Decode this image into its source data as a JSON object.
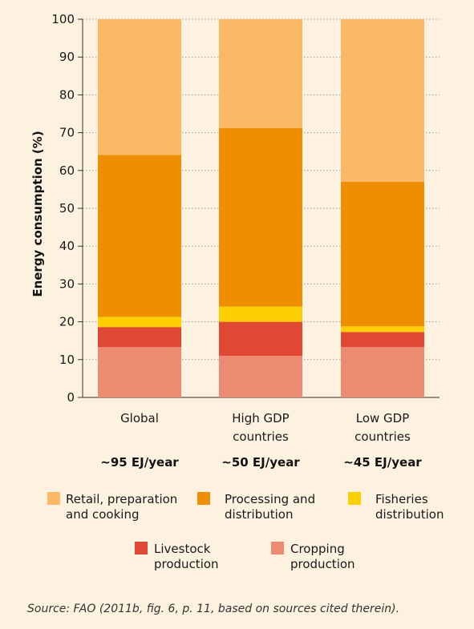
{
  "chart_data": {
    "type": "bar",
    "stacked": true,
    "ylabel": "Energy consumption (%)",
    "ylim": [
      0,
      100
    ],
    "yticks": [
      0,
      10,
      20,
      30,
      40,
      50,
      60,
      70,
      80,
      90,
      100
    ],
    "grid": "horizontal dotted",
    "categories": [
      {
        "label": [
          "Global"
        ],
        "sublabel": "~95 EJ/year"
      },
      {
        "label": [
          "High GDP",
          "countries"
        ],
        "sublabel": "~50 EJ/year"
      },
      {
        "label": [
          "Low GDP",
          "countries"
        ],
        "sublabel": "~45 EJ/year"
      }
    ],
    "series": [
      {
        "name": [
          "Cropping",
          "production"
        ],
        "color": "#ec8b72",
        "values": [
          13.3,
          11.0,
          13.3
        ]
      },
      {
        "name": [
          "Livestock",
          "production"
        ],
        "color": "#e14834",
        "values": [
          5.3,
          9.0,
          4.0
        ]
      },
      {
        "name": [
          "Fisheries",
          "distribution"
        ],
        "color": "#fcd000",
        "values": [
          2.7,
          4.0,
          1.5
        ]
      },
      {
        "name": [
          "Processing and",
          "distribution"
        ],
        "color": "#ee8e00",
        "values": [
          42.8,
          47.2,
          38.2
        ]
      },
      {
        "name": [
          "Retail, preparation",
          "and cooking"
        ],
        "color": "#fbb968",
        "values": [
          35.9,
          28.8,
          43.0
        ]
      }
    ],
    "legend_placement": "bottom"
  },
  "source": "Source: FAO (2011b, fig. 6, p. 11, based on sources cited therein)."
}
